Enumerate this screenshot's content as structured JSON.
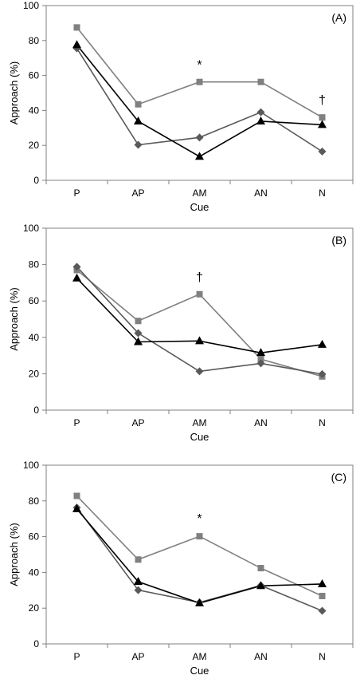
{
  "chart_data": [
    {
      "type": "line",
      "panel_label": "(A)",
      "categories": [
        "P",
        "AP",
        "AM",
        "AN",
        "N"
      ],
      "xlabel": "Cue",
      "ylabel": "Approach (%)",
      "ylim": [
        0,
        100
      ],
      "yticks": [
        0,
        20,
        40,
        60,
        80,
        100
      ],
      "grid": false,
      "series": [
        {
          "marker": "square",
          "color": "#808080",
          "values": [
            87.5,
            43.5,
            56.3,
            56.3,
            36.0
          ]
        },
        {
          "marker": "diamond",
          "color": "#595959",
          "values": [
            75.5,
            20.3,
            24.5,
            39.0,
            16.5
          ]
        },
        {
          "marker": "triangle",
          "color": "#000000",
          "values": [
            77.5,
            33.8,
            13.6,
            33.8,
            31.8
          ]
        }
      ],
      "annotations": [
        {
          "category": "AM",
          "text": "*",
          "y": 66
        },
        {
          "category": "N",
          "text": "†",
          "y": 46
        }
      ]
    },
    {
      "type": "line",
      "panel_label": "(B)",
      "categories": [
        "P",
        "AP",
        "AM",
        "AN",
        "N"
      ],
      "xlabel": "Cue",
      "ylabel": "Approach (%)",
      "ylim": [
        0,
        100
      ],
      "yticks": [
        0,
        20,
        40,
        60,
        80,
        100
      ],
      "grid": false,
      "series": [
        {
          "marker": "square",
          "color": "#808080",
          "values": [
            77.0,
            49.0,
            63.7,
            28.0,
            18.5
          ]
        },
        {
          "marker": "diamond",
          "color": "#595959",
          "values": [
            78.8,
            42.3,
            21.3,
            25.7,
            19.8
          ]
        },
        {
          "marker": "triangle",
          "color": "#000000",
          "values": [
            72.5,
            37.5,
            38.0,
            31.5,
            36.0
          ]
        }
      ],
      "annotations": [
        {
          "category": "AM",
          "text": "†",
          "y": 73
        }
      ]
    },
    {
      "type": "line",
      "panel_label": "(C)",
      "categories": [
        "P",
        "AP",
        "AM",
        "AN",
        "N"
      ],
      "xlabel": "Cue",
      "ylabel": "Approach (%)",
      "ylim": [
        0,
        100
      ],
      "yticks": [
        0,
        20,
        40,
        60,
        80,
        100
      ],
      "grid": false,
      "series": [
        {
          "marker": "square",
          "color": "#808080",
          "values": [
            82.8,
            47.2,
            60.2,
            42.4,
            26.8
          ]
        },
        {
          "marker": "diamond",
          "color": "#595959",
          "values": [
            76.3,
            30.1,
            23.2,
            32.7,
            18.5
          ]
        },
        {
          "marker": "triangle",
          "color": "#000000",
          "values": [
            75.5,
            34.8,
            22.8,
            32.5,
            33.5
          ]
        }
      ],
      "annotations": [
        {
          "category": "AM",
          "text": "*",
          "y": 70
        }
      ]
    }
  ]
}
